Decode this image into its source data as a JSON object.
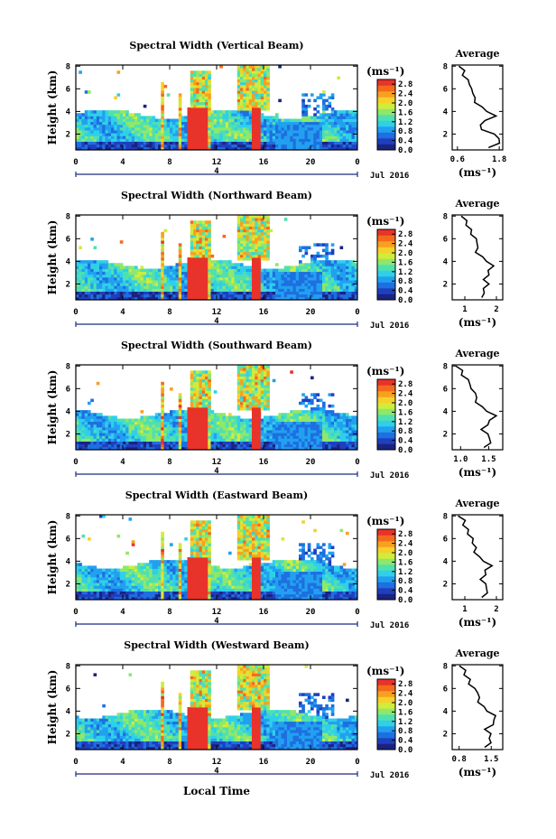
{
  "figure": {
    "xlabel": "Local Time",
    "date_label": "Jul 2016",
    "ylabel": "Height (km)",
    "unit_label": "(ms⁻¹)",
    "avg_xlabel": "(ms⁻¹)",
    "avg_title": "Average"
  },
  "chart_data": [
    {
      "type": "heatmap",
      "title": "Spectral Width (Vertical Beam)",
      "xlabel": "Local Time",
      "ylabel": "Height (km)",
      "x_ticks": [
        "0",
        "4",
        "8",
        "12",
        "16",
        "20",
        "0"
      ],
      "y_ticks": [
        "2",
        "4",
        "6",
        "8"
      ],
      "xlim": [
        0,
        24
      ],
      "ylim": [
        0.6,
        8.1
      ],
      "colorbar": {
        "label": "(ms⁻¹)",
        "ticks": [
          "0.0",
          "0.4",
          "0.8",
          "1.2",
          "1.6",
          "2.0",
          "2.4",
          "2.8"
        ],
        "range": [
          0.0,
          3.0
        ]
      },
      "average_profile": {
        "title": "Average",
        "xlabel": "(ms⁻¹)",
        "x_ticks": [
          "0.6",
          "1.8"
        ],
        "xlim": [
          0.45,
          1.9
        ],
        "heights": [
          0.8,
          1.2,
          1.6,
          2.0,
          2.4,
          2.8,
          3.2,
          3.6,
          4.0,
          4.4,
          4.8,
          5.2,
          5.6,
          6.0,
          6.4,
          6.8,
          7.2,
          7.6,
          8.0
        ],
        "values": [
          1.55,
          1.75,
          1.85,
          1.6,
          1.35,
          1.2,
          1.45,
          1.65,
          1.5,
          1.25,
          1.15,
          1.05,
          1.1,
          0.95,
          1.0,
          0.85,
          0.8,
          0.75,
          0.7
        ]
      }
    },
    {
      "type": "heatmap",
      "title": "Spectral Width (Northward Beam)",
      "xlabel": "Local Time",
      "ylabel": "Height (km)",
      "x_ticks": [
        "0",
        "4",
        "8",
        "12",
        "16",
        "20",
        "0"
      ],
      "y_ticks": [
        "2",
        "4",
        "6",
        "8"
      ],
      "xlim": [
        0,
        24
      ],
      "ylim": [
        0.6,
        8.1
      ],
      "colorbar": {
        "label": "(ms⁻¹)",
        "ticks": [
          "0.0",
          "0.4",
          "0.8",
          "1.2",
          "1.6",
          "2.0",
          "2.4",
          "2.8"
        ],
        "range": [
          0.0,
          3.0
        ]
      },
      "average_profile": {
        "title": "Average",
        "xlabel": "(ms⁻¹)",
        "x_ticks": [
          "1",
          "2"
        ],
        "xlim": [
          0.6,
          2.2
        ],
        "heights": [
          0.8,
          1.2,
          1.6,
          2.0,
          2.4,
          2.8,
          3.2,
          3.6,
          4.0,
          4.4,
          4.8,
          5.2,
          5.6,
          6.0,
          6.4,
          6.8,
          7.2,
          7.6,
          8.0
        ],
        "values": [
          1.6,
          1.55,
          1.65,
          1.7,
          1.65,
          1.7,
          1.8,
          1.85,
          1.75,
          1.5,
          1.4,
          1.35,
          1.45,
          1.3,
          1.25,
          1.15,
          1.1,
          1.0,
          0.95
        ]
      }
    },
    {
      "type": "heatmap",
      "title": "Spectral Width (Southward Beam)",
      "xlabel": "Local Time",
      "ylabel": "Height (km)",
      "x_ticks": [
        "0",
        "4",
        "8",
        "12",
        "16",
        "20",
        "0"
      ],
      "y_ticks": [
        "2",
        "4",
        "6",
        "8"
      ],
      "xlim": [
        0,
        24
      ],
      "ylim": [
        0.6,
        8.1
      ],
      "colorbar": {
        "label": "(ms⁻¹)",
        "ticks": [
          "0.0",
          "0.4",
          "0.8",
          "1.2",
          "1.6",
          "2.0",
          "2.4",
          "2.8"
        ],
        "range": [
          0.0,
          3.0
        ]
      },
      "average_profile": {
        "title": "Average",
        "xlabel": "(ms⁻¹)",
        "x_ticks": [
          "1.0",
          "1.5"
        ],
        "xlim": [
          0.85,
          1.75
        ],
        "heights": [
          0.8,
          1.2,
          1.6,
          2.0,
          2.4,
          2.8,
          3.2,
          3.6,
          4.0,
          4.4,
          4.8,
          5.2,
          5.6,
          6.0,
          6.4,
          6.8,
          7.2,
          7.6,
          8.0
        ],
        "values": [
          1.45,
          1.5,
          1.55,
          1.45,
          1.4,
          1.45,
          1.55,
          1.6,
          1.5,
          1.35,
          1.3,
          1.25,
          1.3,
          1.15,
          1.2,
          1.1,
          1.05,
          1.0,
          0.95
        ]
      }
    },
    {
      "type": "heatmap",
      "title": "Spectral Width (Eastward Beam)",
      "xlabel": "Local Time",
      "ylabel": "Height (km)",
      "x_ticks": [
        "0",
        "4",
        "8",
        "12",
        "16",
        "20",
        "0"
      ],
      "y_ticks": [
        "2",
        "4",
        "6",
        "8"
      ],
      "xlim": [
        0,
        24
      ],
      "ylim": [
        0.6,
        8.1
      ],
      "colorbar": {
        "label": "(ms⁻¹)",
        "ticks": [
          "0.0",
          "0.4",
          "0.8",
          "1.2",
          "1.6",
          "2.0",
          "2.4",
          "2.8"
        ],
        "range": [
          0.0,
          3.0
        ]
      },
      "average_profile": {
        "title": "Average",
        "xlabel": "(ms⁻¹)",
        "x_ticks": [
          "1",
          "2"
        ],
        "xlim": [
          0.6,
          2.2
        ],
        "heights": [
          0.8,
          1.2,
          1.6,
          2.0,
          2.4,
          2.8,
          3.2,
          3.6,
          4.0,
          4.4,
          4.8,
          5.2,
          5.6,
          6.0,
          6.4,
          6.8,
          7.2,
          7.6,
          8.0
        ],
        "values": [
          1.6,
          1.65,
          1.75,
          1.6,
          1.55,
          1.6,
          1.7,
          1.8,
          1.65,
          1.4,
          1.35,
          1.3,
          1.3,
          1.2,
          1.15,
          1.05,
          1.0,
          0.95,
          0.85
        ]
      }
    },
    {
      "type": "heatmap",
      "title": "Spectral Width (Westward Beam)",
      "xlabel": "Local Time",
      "ylabel": "Height (km)",
      "x_ticks": [
        "0",
        "4",
        "8",
        "12",
        "16",
        "20",
        "0"
      ],
      "y_ticks": [
        "2",
        "4",
        "6",
        "8"
      ],
      "xlim": [
        0,
        24
      ],
      "ylim": [
        0.6,
        8.1
      ],
      "colorbar": {
        "label": "(ms⁻¹)",
        "ticks": [
          "0.0",
          "0.4",
          "0.8",
          "1.2",
          "1.6",
          "2.0",
          "2.4",
          "2.8"
        ],
        "range": [
          0.0,
          3.0
        ]
      },
      "average_profile": {
        "title": "Average",
        "xlabel": "(ms⁻¹)",
        "x_ticks": [
          "0.8",
          "1.5"
        ],
        "xlim": [
          0.65,
          1.75
        ],
        "heights": [
          0.8,
          1.2,
          1.6,
          2.0,
          2.4,
          2.8,
          3.2,
          3.6,
          4.0,
          4.4,
          4.8,
          5.2,
          5.6,
          6.0,
          6.4,
          6.8,
          7.2,
          7.6,
          8.0
        ],
        "values": [
          1.4,
          1.45,
          1.5,
          1.45,
          1.4,
          1.5,
          1.6,
          1.55,
          1.45,
          1.3,
          1.25,
          1.2,
          1.25,
          1.1,
          1.05,
          1.0,
          0.95,
          0.9,
          0.85
        ]
      }
    }
  ],
  "colors": {
    "colormap": [
      "#1a237e",
      "#1f3fbf",
      "#1e6fe0",
      "#22a0f0",
      "#2fd0e8",
      "#4fe0b0",
      "#8ee86a",
      "#d0ec3c",
      "#f5d12a",
      "#f8a020",
      "#f46a1c",
      "#e8332a"
    ]
  }
}
